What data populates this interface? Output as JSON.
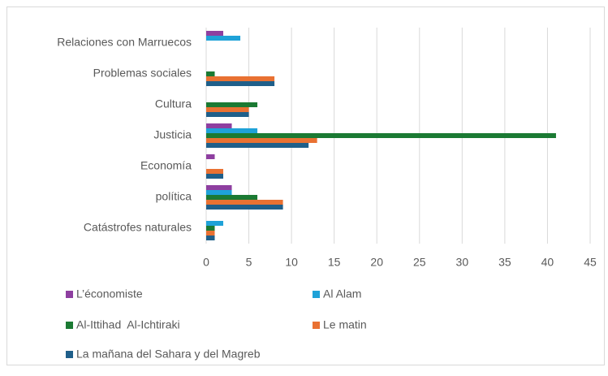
{
  "chart_data": {
    "type": "bar",
    "orientation": "horizontal",
    "categories": [
      "Relaciones con Marruecos",
      "Problemas sociales",
      "Cultura",
      "Justicia",
      "Economía",
      "política",
      "Catástrofes naturales"
    ],
    "series": [
      {
        "name": "L’économiste",
        "color": "#8e3fa0",
        "values": [
          2,
          0,
          0,
          3,
          1,
          3,
          0
        ]
      },
      {
        "name": "Al Alam",
        "color": "#1fa2d8",
        "values": [
          4,
          0,
          0,
          6,
          0,
          3,
          2
        ]
      },
      {
        "name": "Al-Ittihad  Al-Ichtiraki",
        "color": "#1b7a33",
        "values": [
          0,
          1,
          6,
          41,
          0,
          6,
          1
        ]
      },
      {
        "name": "Le matin",
        "color": "#e97132",
        "values": [
          0,
          8,
          5,
          13,
          2,
          9,
          1
        ]
      },
      {
        "name": "La mañana del Sahara y del Magreb",
        "color": "#1f5f8a",
        "values": [
          0,
          8,
          5,
          12,
          2,
          9,
          1
        ]
      }
    ],
    "xlim": [
      0,
      45
    ],
    "xticks": [
      0,
      5,
      10,
      15,
      20,
      25,
      30,
      35,
      40,
      45
    ],
    "grid": true,
    "legend": "bottom"
  }
}
